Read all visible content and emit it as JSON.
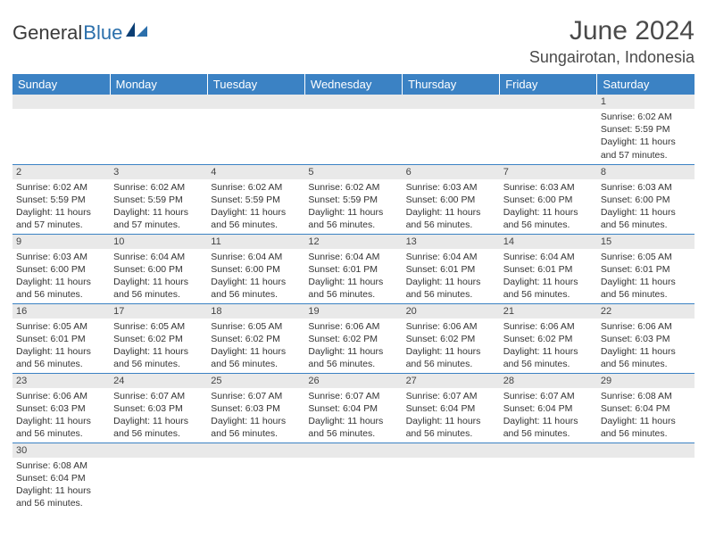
{
  "logo": {
    "text1": "General",
    "text2": "Blue"
  },
  "title": "June 2024",
  "location": "Sungairotan, Indonesia",
  "colors": {
    "header_bg": "#3b82c4",
    "header_text": "#ffffff",
    "daynum_bg": "#e9e9e9",
    "border": "#3b82c4",
    "logo_accent": "#2b6fab"
  },
  "weekdays": [
    "Sunday",
    "Monday",
    "Tuesday",
    "Wednesday",
    "Thursday",
    "Friday",
    "Saturday"
  ],
  "weeks": [
    [
      {
        "day": "",
        "lines": []
      },
      {
        "day": "",
        "lines": []
      },
      {
        "day": "",
        "lines": []
      },
      {
        "day": "",
        "lines": []
      },
      {
        "day": "",
        "lines": []
      },
      {
        "day": "",
        "lines": []
      },
      {
        "day": "1",
        "lines": [
          "Sunrise: 6:02 AM",
          "Sunset: 5:59 PM",
          "Daylight: 11 hours and 57 minutes."
        ]
      }
    ],
    [
      {
        "day": "2",
        "lines": [
          "Sunrise: 6:02 AM",
          "Sunset: 5:59 PM",
          "Daylight: 11 hours and 57 minutes."
        ]
      },
      {
        "day": "3",
        "lines": [
          "Sunrise: 6:02 AM",
          "Sunset: 5:59 PM",
          "Daylight: 11 hours and 57 minutes."
        ]
      },
      {
        "day": "4",
        "lines": [
          "Sunrise: 6:02 AM",
          "Sunset: 5:59 PM",
          "Daylight: 11 hours and 56 minutes."
        ]
      },
      {
        "day": "5",
        "lines": [
          "Sunrise: 6:02 AM",
          "Sunset: 5:59 PM",
          "Daylight: 11 hours and 56 minutes."
        ]
      },
      {
        "day": "6",
        "lines": [
          "Sunrise: 6:03 AM",
          "Sunset: 6:00 PM",
          "Daylight: 11 hours and 56 minutes."
        ]
      },
      {
        "day": "7",
        "lines": [
          "Sunrise: 6:03 AM",
          "Sunset: 6:00 PM",
          "Daylight: 11 hours and 56 minutes."
        ]
      },
      {
        "day": "8",
        "lines": [
          "Sunrise: 6:03 AM",
          "Sunset: 6:00 PM",
          "Daylight: 11 hours and 56 minutes."
        ]
      }
    ],
    [
      {
        "day": "9",
        "lines": [
          "Sunrise: 6:03 AM",
          "Sunset: 6:00 PM",
          "Daylight: 11 hours and 56 minutes."
        ]
      },
      {
        "day": "10",
        "lines": [
          "Sunrise: 6:04 AM",
          "Sunset: 6:00 PM",
          "Daylight: 11 hours and 56 minutes."
        ]
      },
      {
        "day": "11",
        "lines": [
          "Sunrise: 6:04 AM",
          "Sunset: 6:00 PM",
          "Daylight: 11 hours and 56 minutes."
        ]
      },
      {
        "day": "12",
        "lines": [
          "Sunrise: 6:04 AM",
          "Sunset: 6:01 PM",
          "Daylight: 11 hours and 56 minutes."
        ]
      },
      {
        "day": "13",
        "lines": [
          "Sunrise: 6:04 AM",
          "Sunset: 6:01 PM",
          "Daylight: 11 hours and 56 minutes."
        ]
      },
      {
        "day": "14",
        "lines": [
          "Sunrise: 6:04 AM",
          "Sunset: 6:01 PM",
          "Daylight: 11 hours and 56 minutes."
        ]
      },
      {
        "day": "15",
        "lines": [
          "Sunrise: 6:05 AM",
          "Sunset: 6:01 PM",
          "Daylight: 11 hours and 56 minutes."
        ]
      }
    ],
    [
      {
        "day": "16",
        "lines": [
          "Sunrise: 6:05 AM",
          "Sunset: 6:01 PM",
          "Daylight: 11 hours and 56 minutes."
        ]
      },
      {
        "day": "17",
        "lines": [
          "Sunrise: 6:05 AM",
          "Sunset: 6:02 PM",
          "Daylight: 11 hours and 56 minutes."
        ]
      },
      {
        "day": "18",
        "lines": [
          "Sunrise: 6:05 AM",
          "Sunset: 6:02 PM",
          "Daylight: 11 hours and 56 minutes."
        ]
      },
      {
        "day": "19",
        "lines": [
          "Sunrise: 6:06 AM",
          "Sunset: 6:02 PM",
          "Daylight: 11 hours and 56 minutes."
        ]
      },
      {
        "day": "20",
        "lines": [
          "Sunrise: 6:06 AM",
          "Sunset: 6:02 PM",
          "Daylight: 11 hours and 56 minutes."
        ]
      },
      {
        "day": "21",
        "lines": [
          "Sunrise: 6:06 AM",
          "Sunset: 6:02 PM",
          "Daylight: 11 hours and 56 minutes."
        ]
      },
      {
        "day": "22",
        "lines": [
          "Sunrise: 6:06 AM",
          "Sunset: 6:03 PM",
          "Daylight: 11 hours and 56 minutes."
        ]
      }
    ],
    [
      {
        "day": "23",
        "lines": [
          "Sunrise: 6:06 AM",
          "Sunset: 6:03 PM",
          "Daylight: 11 hours and 56 minutes."
        ]
      },
      {
        "day": "24",
        "lines": [
          "Sunrise: 6:07 AM",
          "Sunset: 6:03 PM",
          "Daylight: 11 hours and 56 minutes."
        ]
      },
      {
        "day": "25",
        "lines": [
          "Sunrise: 6:07 AM",
          "Sunset: 6:03 PM",
          "Daylight: 11 hours and 56 minutes."
        ]
      },
      {
        "day": "26",
        "lines": [
          "Sunrise: 6:07 AM",
          "Sunset: 6:04 PM",
          "Daylight: 11 hours and 56 minutes."
        ]
      },
      {
        "day": "27",
        "lines": [
          "Sunrise: 6:07 AM",
          "Sunset: 6:04 PM",
          "Daylight: 11 hours and 56 minutes."
        ]
      },
      {
        "day": "28",
        "lines": [
          "Sunrise: 6:07 AM",
          "Sunset: 6:04 PM",
          "Daylight: 11 hours and 56 minutes."
        ]
      },
      {
        "day": "29",
        "lines": [
          "Sunrise: 6:08 AM",
          "Sunset: 6:04 PM",
          "Daylight: 11 hours and 56 minutes."
        ]
      }
    ],
    [
      {
        "day": "30",
        "lines": [
          "Sunrise: 6:08 AM",
          "Sunset: 6:04 PM",
          "Daylight: 11 hours and 56 minutes."
        ]
      },
      {
        "day": "",
        "lines": []
      },
      {
        "day": "",
        "lines": []
      },
      {
        "day": "",
        "lines": []
      },
      {
        "day": "",
        "lines": []
      },
      {
        "day": "",
        "lines": []
      },
      {
        "day": "",
        "lines": []
      }
    ]
  ]
}
